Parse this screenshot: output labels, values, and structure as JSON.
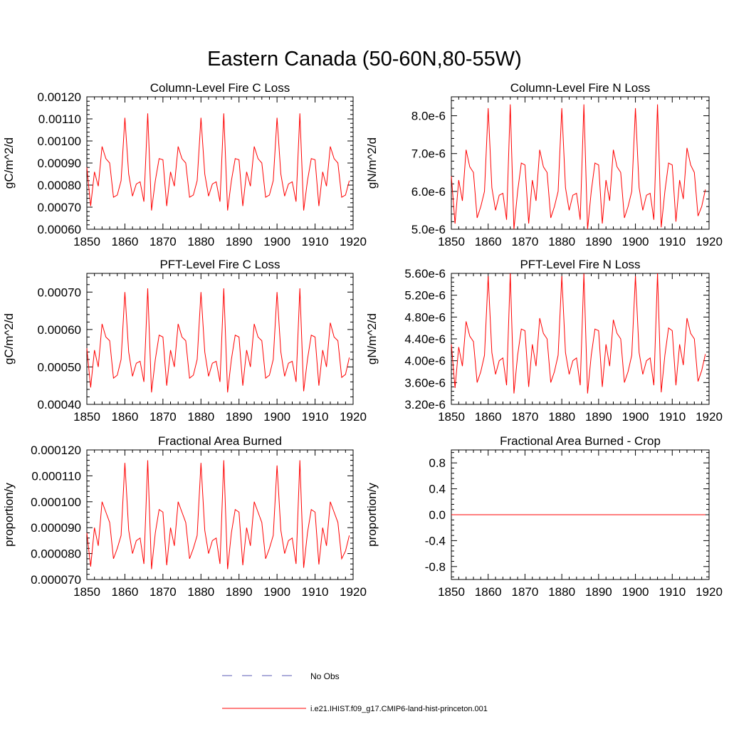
{
  "figure_title": "Eastern Canada (50-60N,80-55W)",
  "legend": {
    "obs_label": "No Obs",
    "obs_color": "#5a5ab4",
    "model_label": "i.e21.IHIST.f09_g17.CMIP6-land-hist-princeton.001",
    "model_color": "#ff0000"
  },
  "chart_data": [
    {
      "type": "line",
      "title": "Column-Level Fire C Loss",
      "ylabel": "gC/m^2/d",
      "xlim": [
        1850,
        1920
      ],
      "x_ticks": [
        "1850",
        "1860",
        "1870",
        "1880",
        "1890",
        "1900",
        "1910",
        "1920"
      ],
      "ylim": [
        0.0006,
        0.0012
      ],
      "y_ticks": [
        "0.00060",
        "0.00070",
        "0.00080",
        "0.00090",
        "0.00100",
        "0.00110",
        "0.00120"
      ],
      "series": [
        {
          "color": "#ff0000",
          "x_start": 1850,
          "x_step": 1,
          "values": [
            0.00088,
            0.000705,
            0.00086,
            0.000795,
            0.000975,
            0.00092,
            0.0009,
            0.000745,
            0.000755,
            0.00082,
            0.001105,
            0.00085,
            0.00075,
            0.000805,
            0.000815,
            0.000725,
            0.001125,
            0.000685,
            0.00082,
            0.00092,
            0.000915,
            0.000705,
            0.00086,
            0.000795,
            0.000975,
            0.00092,
            0.0009,
            0.000745,
            0.000755,
            0.00082,
            0.001105,
            0.00085,
            0.00075,
            0.000805,
            0.000815,
            0.000725,
            0.001125,
            0.000685,
            0.00082,
            0.00092,
            0.000915,
            0.000705,
            0.00086,
            0.000795,
            0.000975,
            0.00092,
            0.0009,
            0.000745,
            0.000755,
            0.00082,
            0.001105,
            0.00085,
            0.00075,
            0.000805,
            0.000815,
            0.000725,
            0.001125,
            0.000685,
            0.00082,
            0.00092,
            0.000915,
            0.000705,
            0.00086,
            0.000795,
            0.000975,
            0.00092,
            0.0009,
            0.000745,
            0.000755,
            0.00082
          ]
        }
      ]
    },
    {
      "type": "line",
      "title": "Column-Level Fire N Loss",
      "ylabel": "gN/m^2/d",
      "xlim": [
        1850,
        1920
      ],
      "x_ticks": [
        "1850",
        "1860",
        "1870",
        "1880",
        "1890",
        "1900",
        "1910",
        "1920"
      ],
      "ylim": [
        5e-06,
        8.5e-06
      ],
      "y_ticks": [
        "5.0e-6",
        "6.0e-6",
        "7.0e-6",
        "8.0e-6"
      ],
      "y_tick_values": [
        5e-06,
        6e-06,
        7e-06,
        8e-06
      ],
      "series": [
        {
          "color": "#ff0000",
          "x_start": 1850,
          "x_step": 1,
          "values": [
            6.4e-06,
            5.15e-06,
            6.3e-06,
            5.75e-06,
            7.1e-06,
            6.65e-06,
            6.5e-06,
            5.3e-06,
            5.6e-06,
            6e-06,
            8.2e-06,
            6.1e-06,
            5.5e-06,
            5.9e-06,
            5.95e-06,
            5.25e-06,
            8.3e-06,
            5e-06,
            6e-06,
            6.75e-06,
            6.7e-06,
            5.15e-06,
            6.3e-06,
            5.75e-06,
            7.1e-06,
            6.65e-06,
            6.5e-06,
            5.3e-06,
            5.6e-06,
            6e-06,
            8.2e-06,
            6.1e-06,
            5.5e-06,
            5.9e-06,
            5.95e-06,
            5.25e-06,
            8.3e-06,
            5e-06,
            6e-06,
            6.75e-06,
            6.7e-06,
            5.15e-06,
            6.3e-06,
            5.75e-06,
            7.1e-06,
            6.65e-06,
            6.5e-06,
            5.3e-06,
            5.6e-06,
            6e-06,
            8.2e-06,
            6.1e-06,
            5.5e-06,
            5.9e-06,
            5.95e-06,
            5.25e-06,
            8.3e-06,
            5.05e-06,
            6e-06,
            6.75e-06,
            6.7e-06,
            5.2e-06,
            6.3e-06,
            5.8e-06,
            7.15e-06,
            6.7e-06,
            6.5e-06,
            5.35e-06,
            5.6e-06,
            6.05e-06
          ]
        }
      ]
    },
    {
      "type": "line",
      "title": "PFT-Level Fire C Loss",
      "ylabel": "gC/m^2/d",
      "xlim": [
        1850,
        1920
      ],
      "x_ticks": [
        "1850",
        "1860",
        "1870",
        "1880",
        "1890",
        "1900",
        "1910",
        "1920"
      ],
      "ylim": [
        0.0004,
        0.00075
      ],
      "y_ticks": [
        "0.00040",
        "0.00050",
        "0.00060",
        "0.00070"
      ],
      "y_tick_values": [
        0.0004,
        0.0005,
        0.0006,
        0.0007
      ],
      "series": [
        {
          "color": "#ff0000",
          "x_start": 1850,
          "x_step": 1,
          "values": [
            0.00055,
            0.000445,
            0.000545,
            0.0005,
            0.000615,
            0.00058,
            0.00057,
            0.00047,
            0.000478,
            0.00052,
            0.0007,
            0.00054,
            0.000475,
            0.00051,
            0.000515,
            0.00046,
            0.00071,
            0.000432,
            0.00052,
            0.000585,
            0.00058,
            0.00045,
            0.000545,
            0.0005,
            0.000615,
            0.00058,
            0.00057,
            0.00047,
            0.000478,
            0.00052,
            0.0007,
            0.00054,
            0.000475,
            0.00051,
            0.000515,
            0.00046,
            0.00071,
            0.000432,
            0.00052,
            0.000585,
            0.00058,
            0.00045,
            0.000545,
            0.0005,
            0.000615,
            0.00058,
            0.00057,
            0.00047,
            0.000478,
            0.00052,
            0.0007,
            0.00054,
            0.000475,
            0.00051,
            0.000515,
            0.00046,
            0.00071,
            0.000435,
            0.00052,
            0.000585,
            0.00058,
            0.00045,
            0.000545,
            0.0005,
            0.000618,
            0.00058,
            0.00057,
            0.000472,
            0.00048,
            0.000525
          ]
        }
      ]
    },
    {
      "type": "line",
      "title": "PFT-Level Fire N Loss",
      "ylabel": "gN/m^2/d",
      "xlim": [
        1850,
        1920
      ],
      "x_ticks": [
        "1850",
        "1860",
        "1870",
        "1880",
        "1890",
        "1900",
        "1910",
        "1920"
      ],
      "ylim": [
        3.2e-06,
        5.6e-06
      ],
      "y_ticks": [
        "3.20e-6",
        "3.60e-6",
        "4.00e-6",
        "4.40e-6",
        "4.80e-6",
        "5.20e-6",
        "5.60e-6"
      ],
      "series": [
        {
          "color": "#ff0000",
          "x_start": 1850,
          "x_step": 1,
          "values": [
            4.3e-06,
            3.5e-06,
            4.25e-06,
            3.9e-06,
            4.72e-06,
            4.45e-06,
            4.35e-06,
            3.6e-06,
            3.8e-06,
            4.1e-06,
            5.55e-06,
            4.15e-06,
            3.75e-06,
            4e-06,
            4.05e-06,
            3.55e-06,
            5.6e-06,
            3.4e-06,
            4.1e-06,
            4.58e-06,
            4.55e-06,
            3.52e-06,
            4.3e-06,
            3.9e-06,
            4.78e-06,
            4.5e-06,
            4.4e-06,
            3.6e-06,
            3.8e-06,
            4.1e-06,
            5.55e-06,
            4.15e-06,
            3.75e-06,
            4e-06,
            4.05e-06,
            3.55e-06,
            5.6e-06,
            3.4e-06,
            4.1e-06,
            4.58e-06,
            4.55e-06,
            3.52e-06,
            4.3e-06,
            3.9e-06,
            4.75e-06,
            4.5e-06,
            4.4e-06,
            3.6e-06,
            3.8e-06,
            4.1e-06,
            5.55e-06,
            4.15e-06,
            3.75e-06,
            4e-06,
            4.05e-06,
            3.55e-06,
            5.6e-06,
            3.42e-06,
            4.1e-06,
            4.6e-06,
            4.55e-06,
            3.55e-06,
            4.3e-06,
            3.92e-06,
            4.78e-06,
            4.5e-06,
            4.4e-06,
            3.62e-06,
            3.82e-06,
            4.12e-06
          ]
        }
      ]
    },
    {
      "type": "line",
      "title": "Fractional Area Burned",
      "ylabel": "proportion/y",
      "xlim": [
        1850,
        1920
      ],
      "x_ticks": [
        "1850",
        "1860",
        "1870",
        "1880",
        "1890",
        "1900",
        "1910",
        "1920"
      ],
      "ylim": [
        7e-05,
        0.00012
      ],
      "y_ticks": [
        "0.000070",
        "0.000080",
        "0.000090",
        "0.000100",
        "0.000110",
        "0.000120"
      ],
      "series": [
        {
          "color": "#ff0000",
          "x_start": 1850,
          "x_step": 1,
          "values": [
            8.8e-05,
            7.5e-05,
            9e-05,
            8.3e-05,
            0.0001,
            9.6e-05,
            9.2e-05,
            7.8e-05,
            8.2e-05,
            8.7e-05,
            0.000115,
            8.9e-05,
            8e-05,
            8.5e-05,
            8.6e-05,
            7.6e-05,
            0.000116,
            7.4e-05,
            8.8e-05,
            9.7e-05,
            9.6e-05,
            7.55e-05,
            9e-05,
            8.3e-05,
            0.0001,
            9.6e-05,
            9.2e-05,
            7.8e-05,
            8.2e-05,
            8.7e-05,
            0.000115,
            8.9e-05,
            8e-05,
            8.5e-05,
            8.6e-05,
            7.6e-05,
            0.000116,
            7.4e-05,
            8.8e-05,
            9.7e-05,
            9.6e-05,
            7.55e-05,
            9e-05,
            8.3e-05,
            0.0001,
            9.6e-05,
            9.2e-05,
            7.8e-05,
            8.2e-05,
            8.7e-05,
            0.000114,
            8.9e-05,
            8e-05,
            8.5e-05,
            8.6e-05,
            7.6e-05,
            0.000116,
            7.45e-05,
            8.8e-05,
            9.7e-05,
            9.6e-05,
            7.58e-05,
            9e-05,
            8.3e-05,
            0.0001,
            9.6e-05,
            9.2e-05,
            7.8e-05,
            8.1e-05,
            8.7e-05
          ]
        }
      ]
    },
    {
      "type": "line",
      "title": "Fractional Area Burned - Crop",
      "ylabel": "proportion/y",
      "xlim": [
        1850,
        1920
      ],
      "x_ticks": [
        "1850",
        "1860",
        "1870",
        "1880",
        "1890",
        "1900",
        "1910",
        "1920"
      ],
      "ylim": [
        -1.0,
        1.0
      ],
      "y_ticks": [
        "-0.8",
        "-0.4",
        "0.0",
        "0.4",
        "0.8"
      ],
      "y_tick_values": [
        -0.8,
        -0.4,
        0.0,
        0.4,
        0.8
      ],
      "series": [
        {
          "color": "#ff0000",
          "x_start": 1850,
          "x_step": 1,
          "values": [
            0,
            0,
            0,
            0,
            0,
            0,
            0,
            0,
            0,
            0,
            0,
            0,
            0,
            0,
            0,
            0,
            0,
            0,
            0,
            0,
            0,
            0,
            0,
            0,
            0,
            0,
            0,
            0,
            0,
            0,
            0,
            0,
            0,
            0,
            0,
            0,
            0,
            0,
            0,
            0,
            0,
            0,
            0,
            0,
            0,
            0,
            0,
            0,
            0,
            0,
            0,
            0,
            0,
            0,
            0,
            0,
            0,
            0,
            0,
            0,
            0,
            0,
            0,
            0,
            0,
            0,
            0,
            0,
            0,
            0
          ]
        }
      ]
    }
  ]
}
